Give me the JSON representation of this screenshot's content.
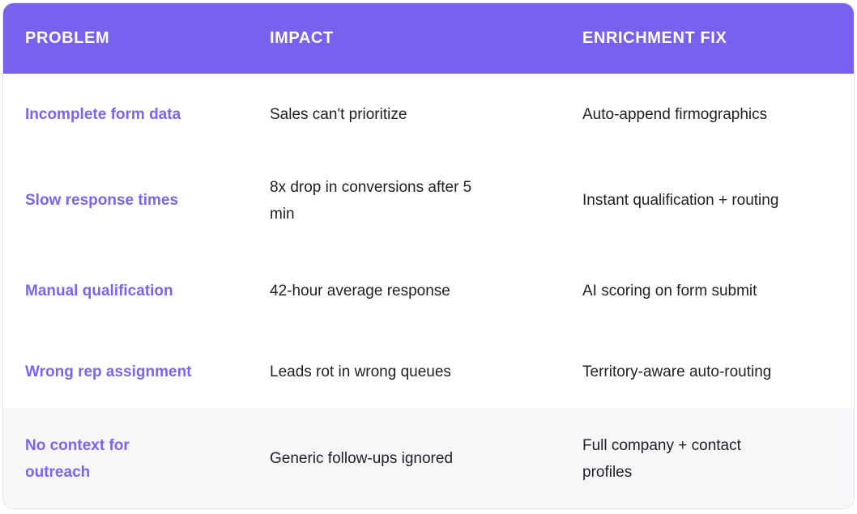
{
  "table": {
    "columns": [
      {
        "label": "PROBLEM"
      },
      {
        "label": "IMPACT"
      },
      {
        "label": "ENRICHMENT FIX"
      }
    ],
    "rows": [
      {
        "problem": "Incomplete form data",
        "impact": "Sales can't prioritize",
        "fix": "Auto-append firmographics"
      },
      {
        "problem": "Slow response times",
        "impact": "8x drop in conversions after 5\nmin",
        "fix": "Instant qualification + routing"
      },
      {
        "problem": "Manual qualification",
        "impact": "42-hour average response",
        "fix": "AI scoring on form submit"
      },
      {
        "problem": "Wrong rep assignment",
        "impact": "Leads rot in wrong queues",
        "fix": "Territory-aware auto-routing"
      },
      {
        "problem": "No context for\noutreach",
        "impact": "Generic follow-ups ignored",
        "fix": "Full company + contact\nprofiles"
      }
    ],
    "colors": {
      "header_bg": "#7662EF",
      "header_text": "#FFFFFF",
      "problem_text": "#7C64F3",
      "body_text": "#212126",
      "last_row_bg": "#F7F7FA",
      "card_border": "#E4E4EE"
    }
  }
}
